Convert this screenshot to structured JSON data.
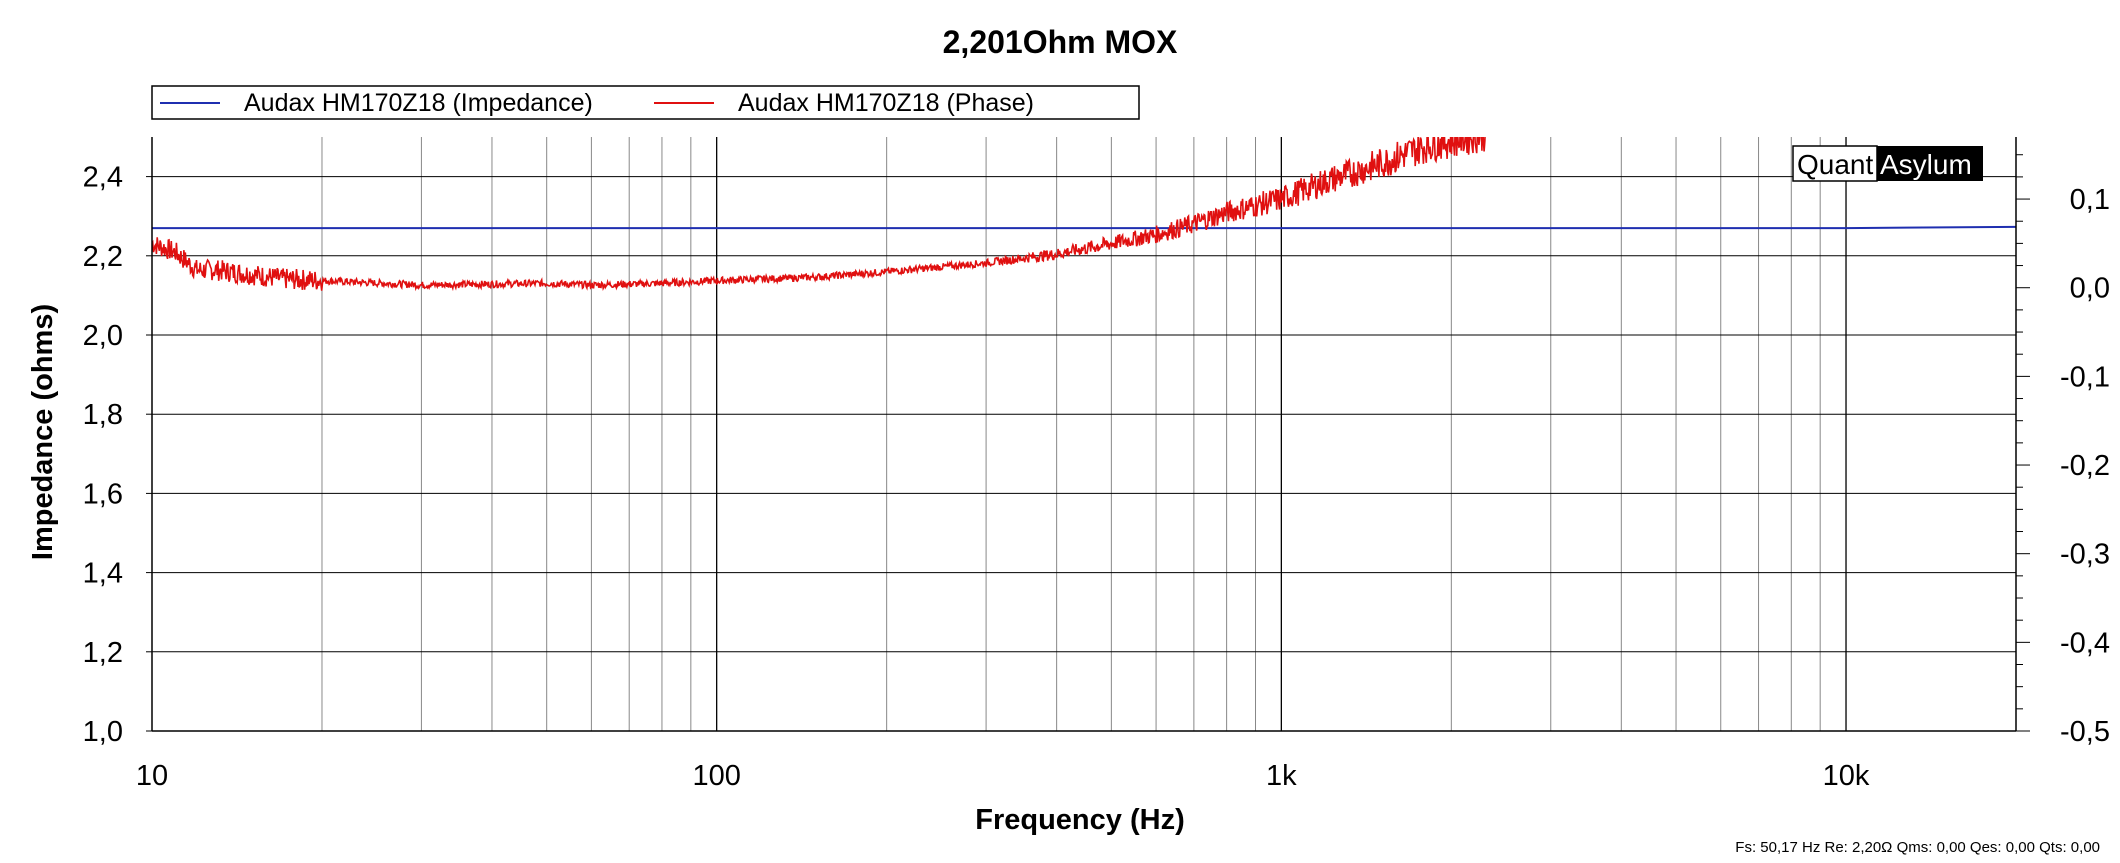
{
  "chart_data": {
    "type": "line",
    "title": "2,201Ohm MOX",
    "xlabel": "Frequency (Hz)",
    "ylabel": "Impedance (ohms)",
    "x_scale": "log",
    "xlim": [
      10,
      20000
    ],
    "ylim": [
      1.0,
      2.5
    ],
    "y2lim": [
      -0.5,
      0.17
    ],
    "grid": true,
    "legend_position": "top-left",
    "x_ticks": [
      {
        "value": 10,
        "label": "10"
      },
      {
        "value": 100,
        "label": "100"
      },
      {
        "value": 1000,
        "label": "1k"
      },
      {
        "value": 10000,
        "label": "10k"
      }
    ],
    "y_ticks": [
      {
        "value": 1.0,
        "label": "1,0"
      },
      {
        "value": 1.2,
        "label": "1,2"
      },
      {
        "value": 1.4,
        "label": "1,4"
      },
      {
        "value": 1.6,
        "label": "1,6"
      },
      {
        "value": 1.8,
        "label": "1,8"
      },
      {
        "value": 2.0,
        "label": "2,0"
      },
      {
        "value": 2.2,
        "label": "2,2"
      },
      {
        "value": 2.4,
        "label": "2,4"
      }
    ],
    "y2_ticks": [
      {
        "value": 0.1,
        "label": "0,1"
      },
      {
        "value": 0.0,
        "label": "0,0"
      },
      {
        "value": -0.1,
        "label": "-0,1"
      },
      {
        "value": -0.2,
        "label": "-0,2"
      },
      {
        "value": -0.3,
        "label": "-0,3"
      },
      {
        "value": -0.4,
        "label": "-0,4"
      },
      {
        "value": -0.5,
        "label": "-0,5"
      }
    ],
    "series": [
      {
        "name": "Audax HM170Z18 (Impedance)",
        "color": "#1f2fb0",
        "axis": "left",
        "x": [
          10,
          20,
          50,
          100,
          200,
          500,
          1000,
          2000,
          5000,
          10000,
          20000
        ],
        "y": [
          2.27,
          2.27,
          2.27,
          2.27,
          2.27,
          2.27,
          2.27,
          2.27,
          2.27,
          2.27,
          2.273
        ]
      },
      {
        "name": "Audax HM170Z18 (Phase)",
        "color": "#e01010",
        "axis": "right",
        "x": [
          10,
          11,
          12,
          13,
          15,
          17,
          20,
          30,
          50,
          60,
          80,
          100,
          150,
          200,
          300,
          400,
          500,
          600,
          700,
          800,
          1000,
          1200,
          1500,
          1800,
          2300
        ],
        "y": [
          0.05,
          0.04,
          0.02,
          0.02,
          0.015,
          0.01,
          0.008,
          0.003,
          0.005,
          0.003,
          0.005,
          0.008,
          0.012,
          0.018,
          0.028,
          0.038,
          0.05,
          0.06,
          0.072,
          0.085,
          0.1,
          0.12,
          0.14,
          0.16,
          0.175
        ]
      }
    ],
    "footer": "Fs: 50,17 Hz  Re: 2,20Ω  Qms: 0,00 Qes: 0,00 Qts: 0,00"
  },
  "brand": {
    "part1": "Quant",
    "part2": "Asylum"
  }
}
